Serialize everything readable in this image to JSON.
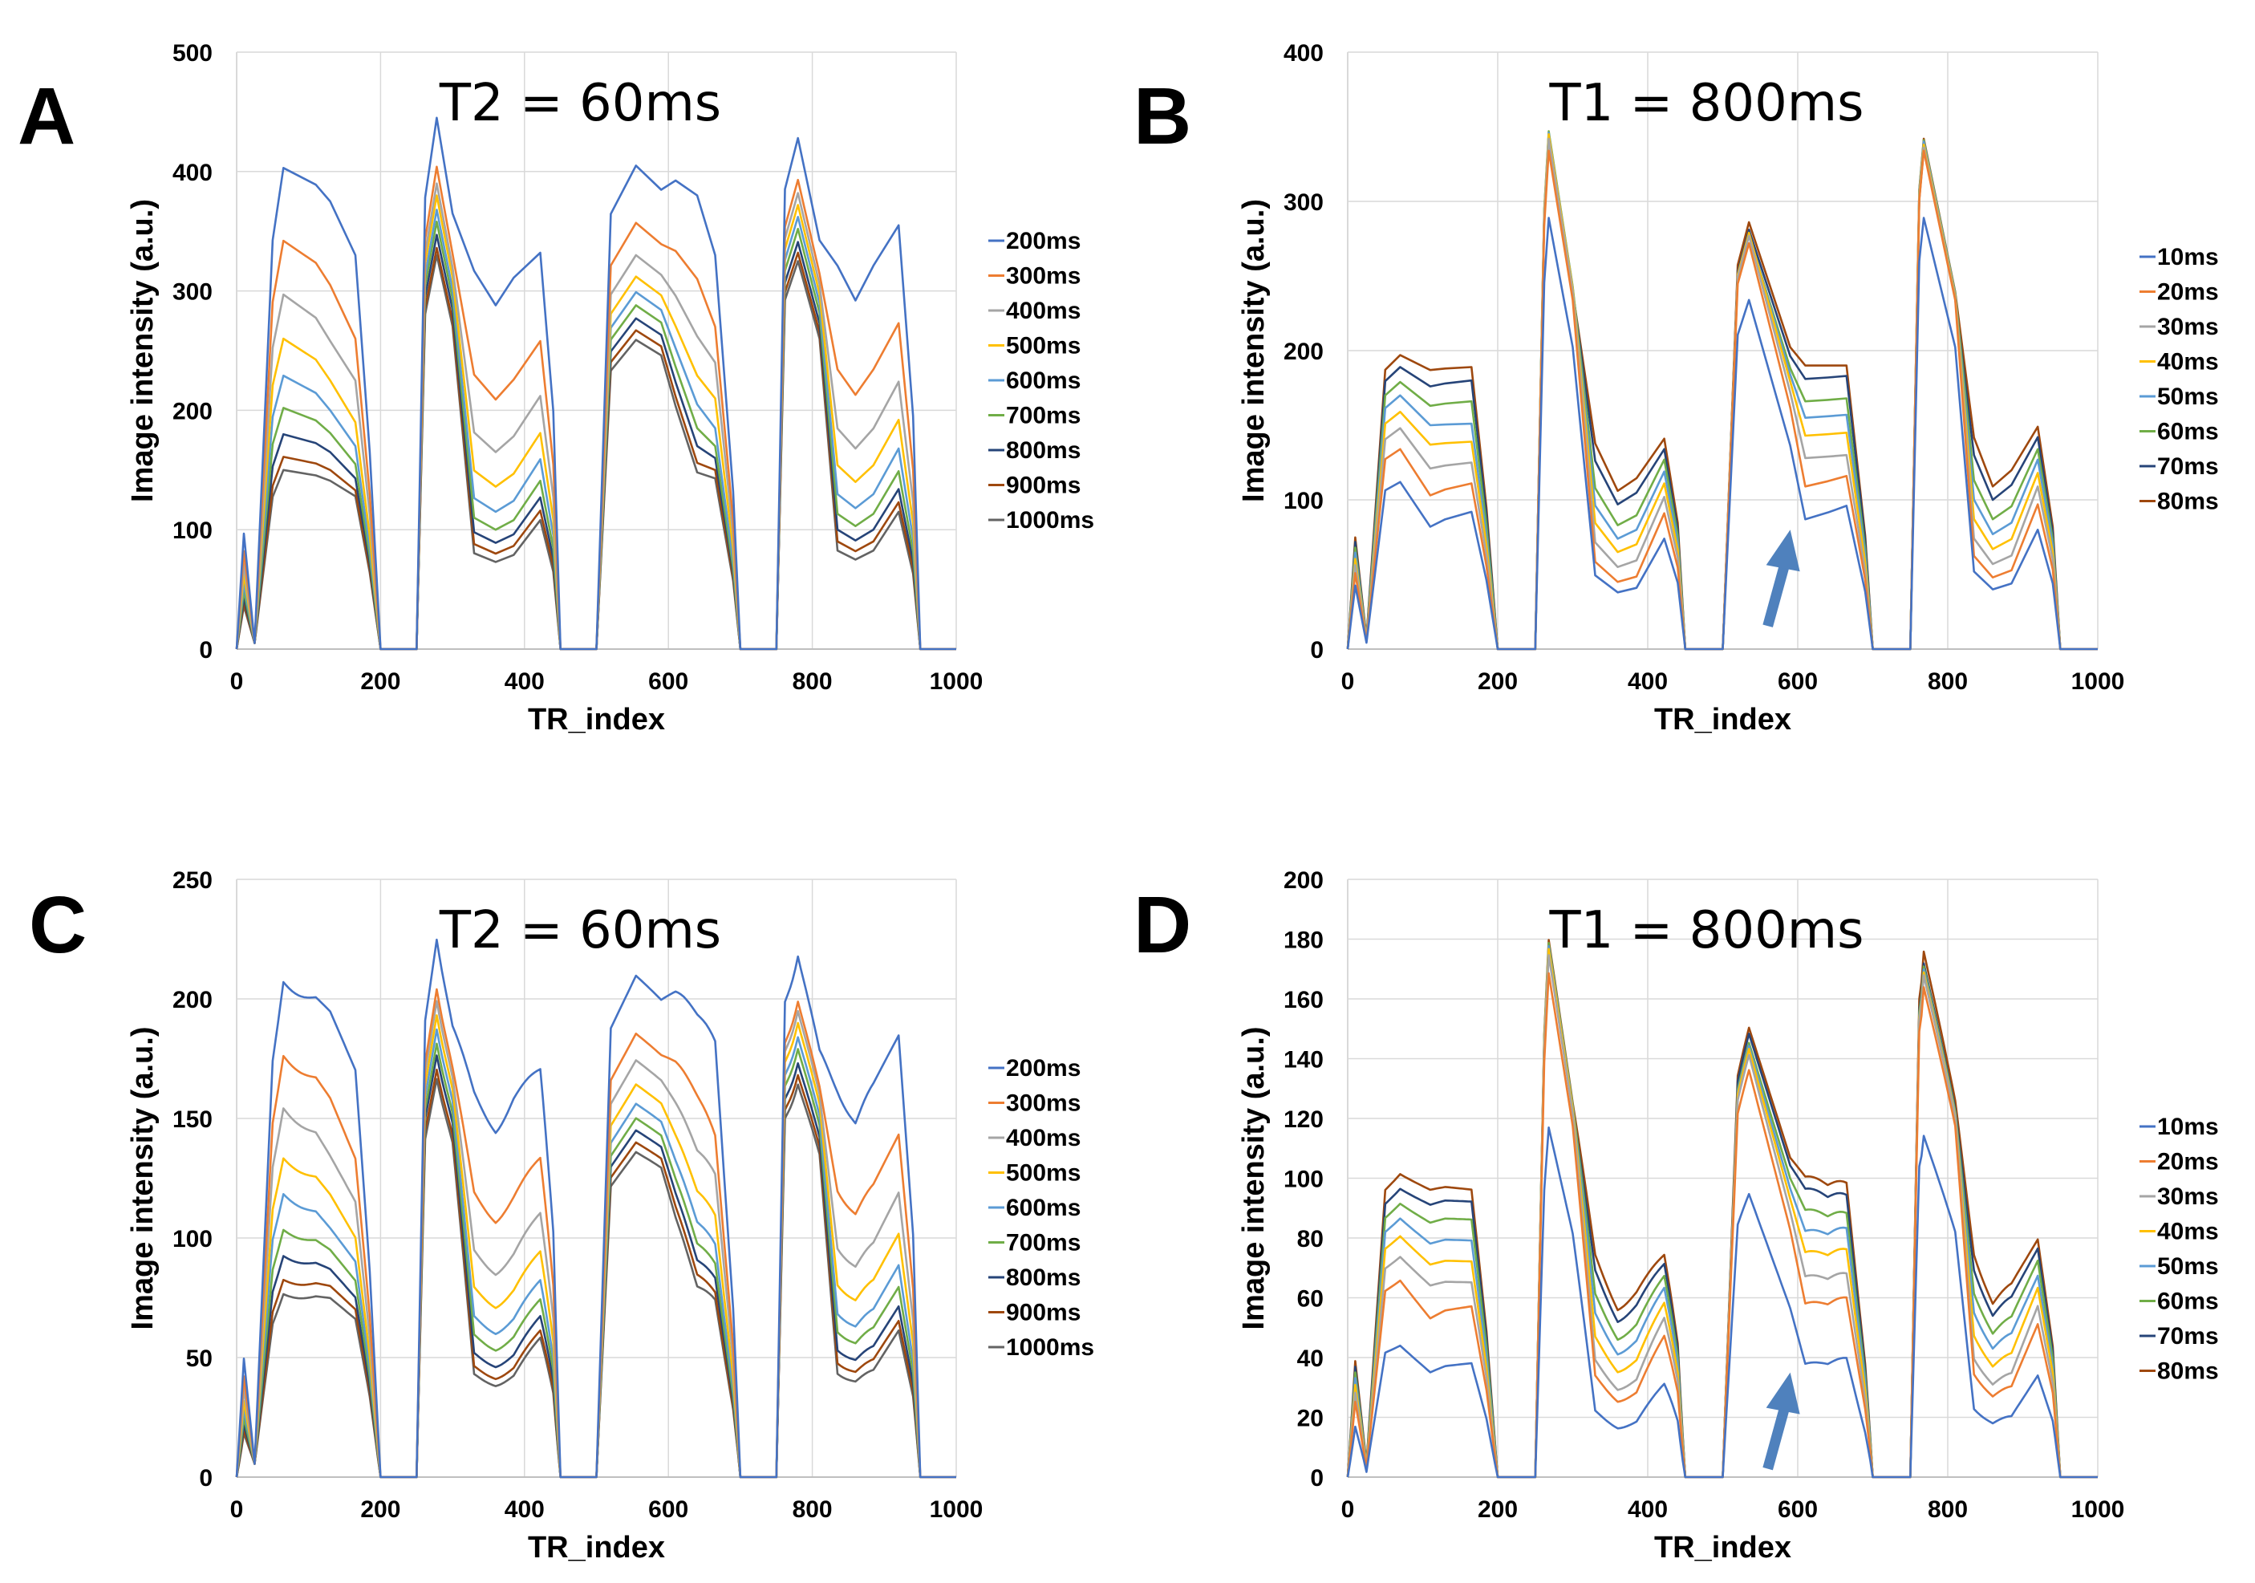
{
  "figure": {
    "panels": [
      "A",
      "B",
      "C",
      "D"
    ]
  },
  "chart_data": [
    {
      "panel": "A",
      "type": "line",
      "annotation": "T2 = 60ms",
      "xlabel": "TR_index",
      "ylabel": "Image intensity (a.u.)",
      "xlim": [
        0,
        1000
      ],
      "ylim": [
        0,
        500
      ],
      "xticks": [
        0,
        200,
        400,
        600,
        800,
        1000
      ],
      "yticks": [
        0,
        100,
        200,
        300,
        400,
        500
      ],
      "grid": true,
      "legend_position": "right",
      "arrow": null,
      "series": [
        {
          "name": "200ms",
          "color": "#4472C4",
          "peaks": [
            403,
            445,
            405,
            428
          ],
          "shoulders": [
            375,
            288,
            380,
            292
          ],
          "tails": [
            330,
            332,
            330,
            355
          ]
        },
        {
          "name": "300ms",
          "color": "#ED7D31",
          "peaks": [
            342,
            404,
            357,
            393
          ],
          "shoulders": [
            305,
            209,
            310,
            213
          ],
          "tails": [
            260,
            258,
            270,
            273
          ]
        },
        {
          "name": "400ms",
          "color": "#A5A5A5",
          "peaks": [
            297,
            390,
            330,
            382
          ],
          "shoulders": [
            258,
            165,
            262,
            168
          ],
          "tails": [
            225,
            212,
            240,
            224
          ]
        },
        {
          "name": "500ms",
          "color": "#FFC000",
          "peaks": [
            260,
            380,
            312,
            372
          ],
          "shoulders": [
            225,
            136,
            229,
            140
          ],
          "tails": [
            190,
            181,
            210,
            192
          ]
        },
        {
          "name": "600ms",
          "color": "#5B9BD5",
          "peaks": [
            229,
            368,
            299,
            362
          ],
          "shoulders": [
            200,
            115,
            205,
            118
          ],
          "tails": [
            170,
            159,
            185,
            168
          ]
        },
        {
          "name": "700ms",
          "color": "#70AD47",
          "peaks": [
            202,
            358,
            288,
            352
          ],
          "shoulders": [
            181,
            100,
            185,
            103
          ],
          "tails": [
            155,
            141,
            170,
            149
          ]
        },
        {
          "name": "800ms",
          "color": "#264478",
          "peaks": [
            180,
            347,
            277,
            341
          ],
          "shoulders": [
            165,
            89,
            170,
            91
          ],
          "tails": [
            143,
            127,
            160,
            134
          ]
        },
        {
          "name": "900ms",
          "color": "#9E480E",
          "peaks": [
            161,
            336,
            267,
            332
          ],
          "shoulders": [
            150,
            80,
            156,
            82
          ],
          "tails": [
            133,
            116,
            150,
            123
          ]
        },
        {
          "name": "1000ms",
          "color": "#636363",
          "peaks": [
            150,
            330,
            259,
            325
          ],
          "shoulders": [
            141,
            73,
            148,
            75
          ],
          "tails": [
            128,
            108,
            143,
            115
          ]
        }
      ]
    },
    {
      "panel": "B",
      "type": "line",
      "annotation": "T1 = 800ms",
      "xlabel": "TR_index",
      "ylabel": "Image intensity (a.u.)",
      "xlim": [
        0,
        1000
      ],
      "ylim": [
        0,
        400
      ],
      "xticks": [
        0,
        200,
        400,
        600,
        800,
        1000
      ],
      "yticks": [
        0,
        100,
        200,
        300,
        400
      ],
      "grid": true,
      "legend_position": "right",
      "arrow": {
        "x": 590,
        "y": 80,
        "direction": "up-right"
      },
      "series": [
        {
          "name": "10ms",
          "color": "#4472C4",
          "peaks": [
            112,
            289,
            234,
            289
          ],
          "shoulders": [
            82,
            38,
            87,
            40
          ],
          "tails": [
            92,
            74,
            96,
            80
          ]
        },
        {
          "name": "20ms",
          "color": "#ED7D31",
          "peaks": [
            134,
            334,
            272,
            334
          ],
          "shoulders": [
            103,
            45,
            109,
            48
          ],
          "tails": [
            111,
            91,
            116,
            97
          ]
        },
        {
          "name": "30ms",
          "color": "#A5A5A5",
          "peaks": [
            148,
            342,
            277,
            336
          ],
          "shoulders": [
            121,
            55,
            128,
            57
          ],
          "tails": [
            125,
            102,
            130,
            109
          ]
        },
        {
          "name": "40ms",
          "color": "#FFC000",
          "peaks": [
            159,
            345,
            279,
            338
          ],
          "shoulders": [
            137,
            65,
            143,
            67
          ],
          "tails": [
            139,
            111,
            145,
            118
          ]
        },
        {
          "name": "50ms",
          "color": "#5B9BD5",
          "peaks": [
            170,
            346,
            278,
            340
          ],
          "shoulders": [
            150,
            74,
            155,
            77
          ],
          "tails": [
            151,
            119,
            157,
            127
          ]
        },
        {
          "name": "60ms",
          "color": "#70AD47",
          "peaks": [
            179,
            347,
            277,
            341
          ],
          "shoulders": [
            163,
            83,
            166,
            87
          ],
          "tails": [
            166,
            127,
            168,
            134
          ]
        },
        {
          "name": "70ms",
          "color": "#264478",
          "peaks": [
            189,
            343,
            281,
            335
          ],
          "shoulders": [
            176,
            97,
            181,
            100
          ],
          "tails": [
            180,
            134,
            183,
            142
          ]
        },
        {
          "name": "80ms",
          "color": "#9E480E",
          "peaks": [
            197,
            342,
            286,
            342
          ],
          "shoulders": [
            187,
            106,
            190,
            109
          ],
          "tails": [
            189,
            141,
            190,
            149
          ]
        }
      ]
    },
    {
      "panel": "C",
      "type": "line",
      "annotation": "T2 = 60ms",
      "xlabel": "TR_index",
      "ylabel": "Image intensity (a.u.)",
      "xlim": [
        0,
        1000
      ],
      "ylim": [
        0,
        250
      ],
      "xticks": [
        0,
        200,
        400,
        600,
        800,
        1000
      ],
      "yticks": [
        0,
        50,
        100,
        150,
        200,
        250
      ],
      "grid": true,
      "legend_position": "right",
      "arrow": null,
      "series": [
        {
          "name": "200ms",
          "color": "#4472C4",
          "peaks": [
            208,
            228,
            207,
            220
          ],
          "shoulders": [
            193,
            146,
            194,
            148
          ],
          "tails": [
            170,
            170,
            180,
            182
          ]
        },
        {
          "name": "300ms",
          "color": "#ED7D31",
          "peaks": [
            177,
            207,
            183,
            201
          ],
          "shoulders": [
            157,
            108,
            160,
            110
          ],
          "tails": [
            133,
            133,
            141,
            141
          ]
        },
        {
          "name": "400ms",
          "color": "#A5A5A5",
          "peaks": [
            155,
            202,
            172,
            197
          ],
          "shoulders": [
            133,
            86,
            137,
            88
          ],
          "tails": [
            115,
            110,
            125,
            117
          ]
        },
        {
          "name": "500ms",
          "color": "#FFC000",
          "peaks": [
            134,
            196,
            162,
            192
          ],
          "shoulders": [
            117,
            72,
            120,
            74
          ],
          "tails": [
            100,
            94,
            108,
            100
          ]
        },
        {
          "name": "600ms",
          "color": "#5B9BD5",
          "peaks": [
            119,
            190,
            154,
            186
          ],
          "shoulders": [
            103,
            61,
            107,
            63
          ],
          "tails": [
            90,
            82,
            96,
            87
          ]
        },
        {
          "name": "700ms",
          "color": "#70AD47",
          "peaks": [
            104,
            184,
            148,
            181
          ],
          "shoulders": [
            94,
            54,
            98,
            56
          ],
          "tails": [
            82,
            74,
            88,
            78
          ]
        },
        {
          "name": "800ms",
          "color": "#264478",
          "peaks": [
            93,
            179,
            143,
            175
          ],
          "shoulders": [
            86,
            47,
            91,
            49
          ],
          "tails": [
            75,
            67,
            82,
            70
          ]
        },
        {
          "name": "900ms",
          "color": "#9E480E",
          "peaks": [
            83,
            173,
            138,
            170
          ],
          "shoulders": [
            79,
            42,
            85,
            44
          ],
          "tails": [
            70,
            61,
            76,
            64
          ]
        },
        {
          "name": "1000ms",
          "color": "#636363",
          "peaks": [
            77,
            169,
            134,
            166
          ],
          "shoulders": [
            74,
            39,
            80,
            40
          ],
          "tails": [
            66,
            58,
            73,
            60
          ]
        }
      ]
    },
    {
      "panel": "D",
      "type": "line",
      "annotation": "T1 = 800ms",
      "xlabel": "TR_index",
      "ylabel": "Image intensity (a.u.)",
      "xlim": [
        0,
        1000
      ],
      "ylim": [
        0,
        200
      ],
      "xticks": [
        0,
        200,
        400,
        600,
        800,
        1000
      ],
      "yticks": [
        0,
        20,
        40,
        60,
        80,
        100,
        120,
        140,
        160,
        180,
        200
      ],
      "grid": true,
      "legend_position": "right",
      "arrow": {
        "x": 590,
        "y": 35,
        "direction": "up-right"
      },
      "series": [
        {
          "name": "10ms",
          "color": "#4472C4",
          "peaks": [
            45,
            115,
            93,
            115
          ],
          "shoulders": [
            35,
            17,
            37,
            18
          ],
          "tails": [
            38,
            31,
            39,
            33
          ]
        },
        {
          "name": "20ms",
          "color": "#ED7D31",
          "peaks": [
            67,
            166,
            134,
            165
          ],
          "shoulders": [
            53,
            26,
            57,
            27
          ],
          "tails": [
            57,
            47,
            59,
            50
          ]
        },
        {
          "name": "30ms",
          "color": "#A5A5A5",
          "peaks": [
            75,
            172,
            139,
            169
          ],
          "shoulders": [
            64,
            30,
            66,
            31
          ],
          "tails": [
            65,
            53,
            67,
            56
          ]
        },
        {
          "name": "40ms",
          "color": "#FFC000",
          "peaks": [
            82,
            174,
            141,
            170
          ],
          "shoulders": [
            71,
            36,
            74,
            37
          ],
          "tails": [
            72,
            58,
            75,
            62
          ]
        },
        {
          "name": "50ms",
          "color": "#5B9BD5",
          "peaks": [
            88,
            175,
            142,
            171
          ],
          "shoulders": [
            78,
            42,
            81,
            43
          ],
          "tails": [
            79,
            63,
            82,
            66
          ]
        },
        {
          "name": "60ms",
          "color": "#70AD47",
          "peaks": [
            93,
            176,
            143,
            172
          ],
          "shoulders": [
            85,
            47,
            88,
            48
          ],
          "tails": [
            86,
            67,
            87,
            71
          ]
        },
        {
          "name": "70ms",
          "color": "#264478",
          "peaks": [
            98,
            174,
            146,
            173
          ],
          "shoulders": [
            91,
            53,
            95,
            54
          ],
          "tails": [
            92,
            71,
            93,
            75
          ]
        },
        {
          "name": "80ms",
          "color": "#9E480E",
          "peaks": [
            103,
            177,
            148,
            177
          ],
          "shoulders": [
            96,
            57,
            99,
            58
          ],
          "tails": [
            96,
            74,
            97,
            78
          ]
        }
      ]
    }
  ]
}
